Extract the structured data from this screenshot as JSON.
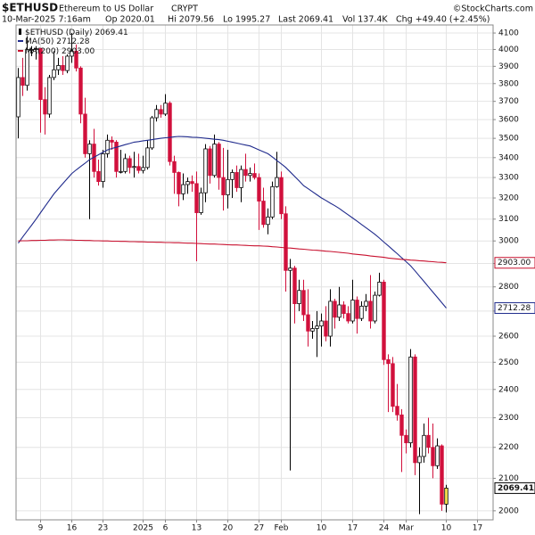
{
  "header": {
    "symbol": "$ETHUSD",
    "description": "Ethereum to US Dollar",
    "exchange": "CRYPT",
    "credit": "©StockCharts.com",
    "datetime": "10-Mar-2025 7:16am",
    "open": "Op 2020.01",
    "high": "Hi 2079.56",
    "low": "Lo 1995.27",
    "last": "Last 2069.41",
    "volume": "Vol 137.4K",
    "change": "Chg +49.40 (+2.45%)"
  },
  "chart_data": {
    "type": "candlestick",
    "candle_name": "$ETHUSD (Daily)",
    "log_scale": true,
    "grid": true,
    "up_color": "#ffffff",
    "down_color": "#d1103c",
    "last_color": "#f4e04d",
    "outline_color": "#000000",
    "categories": [
      null,
      null,
      null,
      null,
      null,
      "9",
      null,
      null,
      null,
      null,
      null,
      null,
      "16",
      null,
      null,
      null,
      null,
      null,
      null,
      "23",
      null,
      null,
      null,
      null,
      null,
      null,
      null,
      null,
      "2025",
      null,
      null,
      null,
      null,
      "6",
      null,
      null,
      null,
      null,
      null,
      null,
      "13",
      null,
      null,
      null,
      null,
      null,
      null,
      "20",
      null,
      null,
      null,
      null,
      null,
      null,
      "27",
      null,
      null,
      null,
      null,
      "Feb",
      null,
      null,
      null,
      null,
      null,
      null,
      null,
      null,
      "10",
      null,
      null,
      null,
      null,
      null,
      null,
      "17",
      null,
      null,
      null,
      null,
      null,
      null,
      "24",
      null,
      null,
      null,
      null,
      "Mar",
      null,
      null,
      null,
      null,
      null,
      null,
      null,
      null,
      "10",
      null,
      null,
      null,
      null,
      null,
      null,
      "17",
      null,
      null,
      null
    ],
    "open": [
      3615,
      3835,
      3790,
      4000,
      4000,
      4005,
      3710,
      3630,
      3835,
      3880,
      3905,
      3875,
      3960,
      3990,
      3890,
      3630,
      3420,
      3470,
      3330,
      3280,
      3420,
      3490,
      3480,
      3330,
      3330,
      3395,
      3350,
      3355,
      3335,
      3350,
      3450,
      3610,
      3655,
      3630,
      3690,
      3380,
      3325,
      3220,
      3265,
      3280,
      3270,
      3130,
      3225,
      3445,
      3310,
      3470,
      3300,
      3215,
      3290,
      3325,
      3250,
      3340,
      3310,
      3320,
      3300,
      3185,
      3075,
      3110,
      3255,
      3300,
      3125,
      2870,
      2880,
      2730,
      2785,
      2685,
      2620,
      2630,
      2640,
      2660,
      2600,
      2740,
      2675,
      2725,
      2690,
      2660,
      2745,
      2670,
      2720,
      2740,
      2660,
      2765,
      2820,
      2510,
      2495,
      2340,
      2310,
      2240,
      2215,
      2520,
      2150,
      2170,
      2240,
      2200,
      2140,
      2205,
      2020.01,
      null,
      null,
      null,
      null,
      null,
      null,
      null,
      null,
      null,
      null
    ],
    "high": [
      3890,
      3950,
      4080,
      4020,
      4020,
      4010,
      3780,
      3850,
      3990,
      3950,
      3960,
      3970,
      4100,
      4030,
      3900,
      3720,
      3490,
      3550,
      3390,
      3440,
      3520,
      3510,
      3490,
      3440,
      3420,
      3410,
      3430,
      3420,
      3410,
      3490,
      3620,
      3680,
      3680,
      3740,
      3700,
      3410,
      3330,
      3320,
      3300,
      3310,
      3330,
      3250,
      3470,
      3460,
      3520,
      3480,
      3450,
      3440,
      3340,
      3360,
      3360,
      3420,
      3350,
      3370,
      3320,
      3250,
      3150,
      3280,
      3430,
      3330,
      3160,
      2920,
      2890,
      2830,
      2830,
      2790,
      2660,
      2700,
      2690,
      2720,
      2790,
      2750,
      2800,
      2740,
      2720,
      2830,
      2760,
      2740,
      2770,
      2850,
      2780,
      2860,
      2830,
      2530,
      2520,
      2420,
      2330,
      2260,
      2550,
      2530,
      2200,
      2280,
      2300,
      2280,
      2230,
      2210,
      2079.56,
      null,
      null,
      null,
      null,
      null,
      null,
      null,
      null,
      null,
      null
    ],
    "low": [
      3500,
      3730,
      3760,
      3960,
      3940,
      3530,
      3520,
      3610,
      3820,
      3850,
      3850,
      3860,
      3920,
      3870,
      3580,
      3400,
      3100,
      3300,
      3260,
      3250,
      3400,
      3440,
      3300,
      3320,
      3320,
      3320,
      3300,
      3320,
      3320,
      3340,
      3440,
      3590,
      3610,
      3620,
      3360,
      3220,
      3160,
      3190,
      3220,
      3230,
      2910,
      3120,
      3180,
      3270,
      3300,
      3240,
      3140,
      3150,
      3200,
      3230,
      3180,
      3280,
      3280,
      3290,
      3050,
      3060,
      3030,
      3100,
      3250,
      3100,
      2780,
      2125,
      2650,
      2700,
      2660,
      2560,
      2590,
      2520,
      2560,
      2580,
      2560,
      2630,
      2660,
      2670,
      2650,
      2650,
      2610,
      2660,
      2700,
      2630,
      2650,
      2760,
      2490,
      2320,
      2320,
      2290,
      2120,
      2180,
      2200,
      2110,
      1990,
      2150,
      2180,
      2100,
      2130,
      2000,
      1995.27,
      null,
      null,
      null,
      null,
      null,
      null,
      null,
      null,
      null,
      null
    ],
    "close": [
      3835,
      3790,
      4000,
      4000,
      4005,
      3710,
      3630,
      3835,
      3880,
      3905,
      3875,
      3960,
      3990,
      3890,
      3630,
      3420,
      3470,
      3330,
      3280,
      3420,
      3490,
      3480,
      3330,
      3330,
      3395,
      3350,
      3355,
      3335,
      3350,
      3450,
      3610,
      3655,
      3630,
      3690,
      3380,
      3325,
      3220,
      3265,
      3280,
      3270,
      3130,
      3225,
      3445,
      3310,
      3470,
      3300,
      3215,
      3290,
      3325,
      3250,
      3340,
      3310,
      3320,
      3300,
      3185,
      3075,
      3110,
      3255,
      3300,
      3125,
      2870,
      2880,
      2730,
      2785,
      2685,
      2620,
      2630,
      2640,
      2660,
      2600,
      2740,
      2675,
      2725,
      2690,
      2660,
      2745,
      2670,
      2720,
      2740,
      2660,
      2765,
      2820,
      2510,
      2495,
      2340,
      2310,
      2240,
      2215,
      2520,
      2150,
      2170,
      2240,
      2200,
      2140,
      2205,
      2020.01,
      2069.41,
      null,
      null,
      null,
      null,
      null,
      null,
      null,
      null,
      null,
      null
    ],
    "series": [
      {
        "name": "MA(50)",
        "color": "#1f2a8c",
        "values": [
          2990,
          3018,
          3045,
          3072,
          3100,
          3130,
          3160,
          3190,
          3220,
          3245,
          3270,
          3295,
          3320,
          3338,
          3355,
          3372,
          3390,
          3402,
          3415,
          3428,
          3440,
          3447,
          3453,
          3460,
          3467,
          3473,
          3480,
          3483,
          3487,
          3490,
          3493,
          3497,
          3500,
          3503,
          3505,
          3508,
          3510,
          3509,
          3508,
          3506,
          3505,
          3503,
          3500,
          3498,
          3495,
          3493,
          3490,
          3485,
          3480,
          3475,
          3470,
          3465,
          3460,
          3450,
          3440,
          3430,
          3420,
          3403,
          3385,
          3368,
          3350,
          3328,
          3305,
          3283,
          3260,
          3245,
          3230,
          3215,
          3200,
          3188,
          3175,
          3163,
          3150,
          3135,
          3120,
          3105,
          3090,
          3075,
          3060,
          3045,
          3030,
          3013,
          2995,
          2978,
          2960,
          2943,
          2925,
          2908,
          2890,
          2868,
          2845,
          2823,
          2800,
          2778,
          2756,
          2734,
          2712.28,
          null,
          null,
          null,
          null,
          null,
          null,
          null,
          null,
          null,
          null
        ]
      },
      {
        "name": "MA(200)",
        "color": "#c8102e",
        "values": [
          3000,
          3001,
          3001,
          3002,
          3002,
          3003,
          3003,
          3004,
          3004,
          3005,
          3005,
          3004,
          3004,
          3003,
          3003,
          3002,
          3002,
          3001,
          3001,
          3000,
          3000,
          2999,
          2999,
          2998,
          2998,
          2997,
          2997,
          2996,
          2996,
          2995,
          2995,
          2994,
          2994,
          2993,
          2993,
          2992,
          2992,
          2991,
          2990,
          2990,
          2989,
          2988,
          2987,
          2986,
          2986,
          2985,
          2984,
          2983,
          2982,
          2982,
          2981,
          2980,
          2979,
          2978,
          2978,
          2977,
          2976,
          2974,
          2973,
          2971,
          2969,
          2968,
          2966,
          2964,
          2963,
          2961,
          2959,
          2958,
          2956,
          2954,
          2953,
          2951,
          2949,
          2947,
          2945,
          2942,
          2940,
          2938,
          2936,
          2933,
          2931,
          2929,
          2927,
          2924,
          2922,
          2920,
          2918,
          2917,
          2915,
          2914,
          2912,
          2911,
          2909,
          2908,
          2906,
          2905,
          2903.0,
          null,
          null,
          null,
          null,
          null,
          null,
          null,
          null,
          null,
          null
        ],
        "value_labels": [
          null,
          null,
          null,
          null,
          null,
          null,
          null,
          null,
          null,
          null,
          null,
          null,
          null,
          null,
          null,
          null,
          null,
          null,
          null,
          null,
          null,
          null,
          null,
          null,
          null,
          null,
          null,
          null,
          null,
          null,
          null,
          null,
          null,
          null,
          null,
          null,
          null,
          null,
          null,
          null,
          null,
          null,
          null,
          null,
          null,
          null,
          null,
          null,
          null,
          null,
          null,
          null,
          null,
          null,
          null,
          null,
          null,
          null,
          null,
          null,
          null,
          null,
          null,
          null,
          null,
          null,
          null,
          null,
          null,
          null,
          null,
          null,
          null,
          null,
          null,
          null,
          null,
          null,
          null,
          null,
          null,
          null,
          null,
          null,
          null,
          null,
          null,
          null,
          null,
          null,
          null,
          null,
          null,
          null,
          null,
          null,
          "2903.00",
          null,
          null,
          null,
          null,
          null,
          null,
          null,
          null,
          null,
          null
        ]
      }
    ],
    "ylim": [
      1973,
      4150
    ],
    "yticks": [
      2000,
      2100,
      2200,
      2300,
      2400,
      2500,
      2600,
      2700,
      2800,
      2900,
      3000,
      3100,
      3200,
      3300,
      3400,
      3500,
      3600,
      3700,
      3800,
      3900,
      4000,
      4100
    ]
  }
}
